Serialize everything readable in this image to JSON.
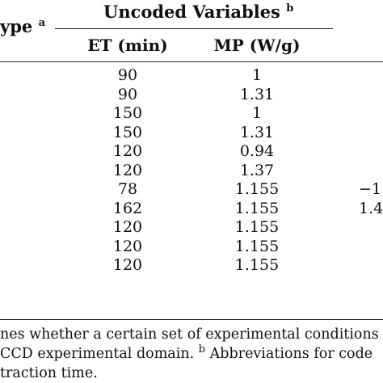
{
  "header": {
    "type_label": "ype",
    "type_sup": "a",
    "group_label": "Uncoded Variables",
    "group_sup": "b",
    "col_et": "ET (min)",
    "col_mp": "MP (W/g)"
  },
  "rows": [
    {
      "et": "90",
      "mp": "1",
      "x": ""
    },
    {
      "et": "90",
      "mp": "1.31",
      "x": ""
    },
    {
      "et": "150",
      "mp": "1",
      "x": ""
    },
    {
      "et": "150",
      "mp": "1.31",
      "x": ""
    },
    {
      "et": "120",
      "mp": "0.94",
      "x": ""
    },
    {
      "et": "120",
      "mp": "1.37",
      "x": ""
    },
    {
      "et": "78",
      "mp": "1.155",
      "x": "−1"
    },
    {
      "et": "162",
      "mp": "1.155",
      "x": "1.4"
    },
    {
      "et": "120",
      "mp": "1.155",
      "x": ""
    },
    {
      "et": "120",
      "mp": "1.155",
      "x": ""
    },
    {
      "et": "120",
      "mp": "1.155",
      "x": ""
    }
  ],
  "footnotes": {
    "line1": "nes whether a certain set of experimental conditions r",
    "line2_pre": "CCD experimental domain.",
    "line2_sup": "b",
    "line2_post": "Abbreviations for code",
    "line3": "traction time."
  }
}
